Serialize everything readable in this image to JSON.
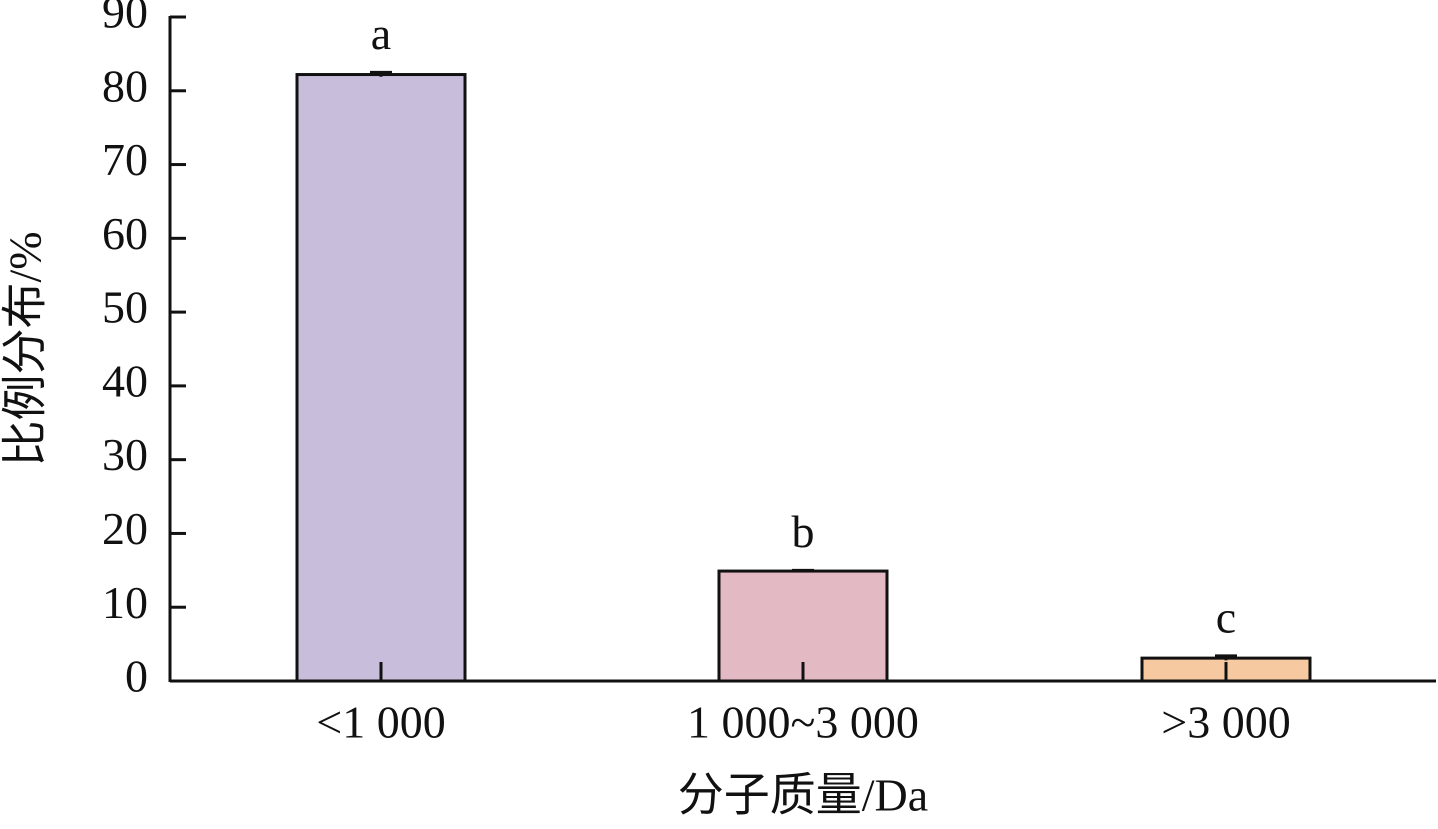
{
  "chart_data": {
    "type": "bar",
    "y_label": "比例分布/%",
    "x_label": "分子质量/Da",
    "categories": [
      "<1 000",
      "1 000~3 000",
      ">3 000"
    ],
    "values": [
      82.2,
      14.9,
      3.1
    ],
    "errors": [
      0.3,
      0.1,
      0.3
    ],
    "annotations": [
      "a",
      "b",
      "c"
    ],
    "colors": [
      "#c8bedb",
      "#e3b9c3",
      "#f6c9a1"
    ],
    "ylim": [
      0,
      90
    ],
    "yticks": [
      0,
      10,
      20,
      30,
      40,
      50,
      60,
      70,
      80,
      90
    ]
  }
}
